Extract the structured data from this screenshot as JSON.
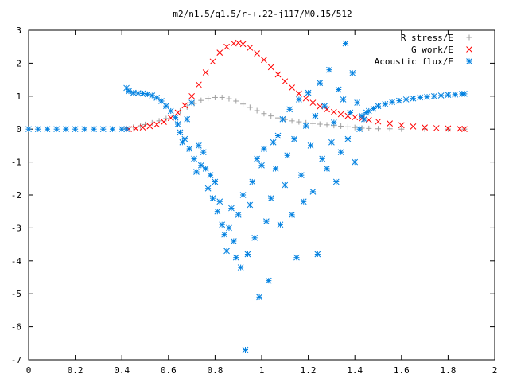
{
  "chart_data": {
    "type": "scatter",
    "title": "m2/n1.5/q1.5/r-+.22-j117/M0.15/512",
    "xlabel": "",
    "ylabel": "",
    "xlim": [
      0,
      2
    ],
    "ylim": [
      -7,
      3
    ],
    "x_ticks": [
      "0",
      "0.2",
      "0.4",
      "0.6",
      "0.8",
      "1",
      "1.2",
      "1.4",
      "1.6",
      "1.8",
      "2"
    ],
    "y_ticks": [
      "3",
      "2",
      "1",
      "0",
      "-1",
      "-2",
      "-3",
      "-4",
      "-5",
      "-6",
      "-7"
    ],
    "grid": false,
    "legend_position": "top-right",
    "series": [
      {
        "name": "R stress/E",
        "marker": "plus",
        "color": "#a0a0a0",
        "points": [
          [
            0.42,
            0.02
          ],
          [
            0.45,
            0.06
          ],
          [
            0.48,
            0.1
          ],
          [
            0.5,
            0.14
          ],
          [
            0.53,
            0.19
          ],
          [
            0.56,
            0.25
          ],
          [
            0.59,
            0.32
          ],
          [
            0.62,
            0.42
          ],
          [
            0.65,
            0.55
          ],
          [
            0.68,
            0.67
          ],
          [
            0.71,
            0.78
          ],
          [
            0.74,
            0.87
          ],
          [
            0.77,
            0.93
          ],
          [
            0.8,
            0.96
          ],
          [
            0.83,
            0.96
          ],
          [
            0.86,
            0.92
          ],
          [
            0.89,
            0.85
          ],
          [
            0.92,
            0.76
          ],
          [
            0.95,
            0.66
          ],
          [
            0.98,
            0.56
          ],
          [
            1.01,
            0.47
          ],
          [
            1.04,
            0.4
          ],
          [
            1.07,
            0.34
          ],
          [
            1.1,
            0.29
          ],
          [
            1.13,
            0.25
          ],
          [
            1.16,
            0.22
          ],
          [
            1.19,
            0.19
          ],
          [
            1.22,
            0.17
          ],
          [
            1.25,
            0.15
          ],
          [
            1.28,
            0.13
          ],
          [
            1.31,
            0.11
          ],
          [
            1.34,
            0.09
          ],
          [
            1.37,
            0.07
          ],
          [
            1.4,
            0.05
          ],
          [
            1.43,
            0.03
          ],
          [
            1.46,
            0.02
          ],
          [
            1.5,
            0.01
          ],
          [
            1.55,
            0.01
          ],
          [
            1.6,
            0.0
          ],
          [
            1.7,
            0.0
          ],
          [
            1.8,
            0.0
          ],
          [
            1.87,
            0.0
          ]
        ]
      },
      {
        "name": "G work/E",
        "marker": "cross",
        "color": "#ff0000",
        "points": [
          [
            0.43,
            0.0
          ],
          [
            0.46,
            0.02
          ],
          [
            0.49,
            0.05
          ],
          [
            0.52,
            0.09
          ],
          [
            0.55,
            0.14
          ],
          [
            0.58,
            0.22
          ],
          [
            0.61,
            0.34
          ],
          [
            0.64,
            0.5
          ],
          [
            0.67,
            0.72
          ],
          [
            0.7,
            1.0
          ],
          [
            0.73,
            1.35
          ],
          [
            0.76,
            1.72
          ],
          [
            0.79,
            2.05
          ],
          [
            0.82,
            2.32
          ],
          [
            0.85,
            2.5
          ],
          [
            0.88,
            2.6
          ],
          [
            0.9,
            2.62
          ],
          [
            0.92,
            2.58
          ],
          [
            0.95,
            2.47
          ],
          [
            0.98,
            2.3
          ],
          [
            1.01,
            2.1
          ],
          [
            1.04,
            1.88
          ],
          [
            1.07,
            1.66
          ],
          [
            1.1,
            1.45
          ],
          [
            1.13,
            1.26
          ],
          [
            1.16,
            1.08
          ],
          [
            1.19,
            0.93
          ],
          [
            1.22,
            0.8
          ],
          [
            1.25,
            0.69
          ],
          [
            1.28,
            0.6
          ],
          [
            1.31,
            0.52
          ],
          [
            1.34,
            0.45
          ],
          [
            1.37,
            0.4
          ],
          [
            1.4,
            0.36
          ],
          [
            1.43,
            0.32
          ],
          [
            1.46,
            0.28
          ],
          [
            1.5,
            0.23
          ],
          [
            1.55,
            0.17
          ],
          [
            1.6,
            0.12
          ],
          [
            1.65,
            0.08
          ],
          [
            1.7,
            0.05
          ],
          [
            1.75,
            0.03
          ],
          [
            1.8,
            0.02
          ],
          [
            1.85,
            0.01
          ],
          [
            1.87,
            0.0
          ]
        ]
      },
      {
        "name": "Acoustic flux/E",
        "marker": "star",
        "color": "#0080e0",
        "points": [
          [
            0.0,
            0.0
          ],
          [
            0.04,
            0.0
          ],
          [
            0.08,
            0.0
          ],
          [
            0.12,
            0.0
          ],
          [
            0.16,
            0.0
          ],
          [
            0.2,
            0.0
          ],
          [
            0.24,
            0.0
          ],
          [
            0.28,
            0.0
          ],
          [
            0.32,
            0.0
          ],
          [
            0.36,
            0.0
          ],
          [
            0.4,
            0.0
          ],
          [
            0.42,
            0.0
          ],
          [
            0.42,
            1.25
          ],
          [
            0.43,
            1.15
          ],
          [
            0.45,
            1.1
          ],
          [
            0.47,
            1.09
          ],
          [
            0.49,
            1.08
          ],
          [
            0.51,
            1.06
          ],
          [
            0.53,
            1.02
          ],
          [
            0.55,
            0.95
          ],
          [
            0.57,
            0.85
          ],
          [
            0.59,
            0.7
          ],
          [
            0.61,
            0.55
          ],
          [
            0.63,
            0.35
          ],
          [
            0.64,
            0.15
          ],
          [
            0.65,
            -0.1
          ],
          [
            0.66,
            -0.4
          ],
          [
            0.67,
            -0.3
          ],
          [
            0.68,
            0.3
          ],
          [
            0.69,
            -0.6
          ],
          [
            0.7,
            0.8
          ],
          [
            0.71,
            -0.9
          ],
          [
            0.72,
            -1.3
          ],
          [
            0.73,
            -0.5
          ],
          [
            0.74,
            -1.1
          ],
          [
            0.75,
            -0.7
          ],
          [
            0.76,
            -1.2
          ],
          [
            0.77,
            -1.8
          ],
          [
            0.78,
            -1.4
          ],
          [
            0.79,
            -2.1
          ],
          [
            0.8,
            -1.6
          ],
          [
            0.81,
            -2.5
          ],
          [
            0.82,
            -2.2
          ],
          [
            0.83,
            -2.9
          ],
          [
            0.84,
            -3.2
          ],
          [
            0.85,
            -3.7
          ],
          [
            0.86,
            -3.0
          ],
          [
            0.87,
            -2.4
          ],
          [
            0.88,
            -3.4
          ],
          [
            0.89,
            -3.9
          ],
          [
            0.9,
            -2.6
          ],
          [
            0.91,
            -4.2
          ],
          [
            0.92,
            -2.0
          ],
          [
            0.93,
            -6.7
          ],
          [
            0.94,
            -3.8
          ],
          [
            0.95,
            -2.3
          ],
          [
            0.96,
            -1.6
          ],
          [
            0.97,
            -3.3
          ],
          [
            0.98,
            -0.9
          ],
          [
            0.99,
            -5.1
          ],
          [
            1.0,
            -1.1
          ],
          [
            1.01,
            -0.6
          ],
          [
            1.02,
            -2.8
          ],
          [
            1.03,
            -4.6
          ],
          [
            1.04,
            -2.1
          ],
          [
            1.05,
            -0.4
          ],
          [
            1.06,
            -1.2
          ],
          [
            1.07,
            -0.2
          ],
          [
            1.08,
            -2.9
          ],
          [
            1.09,
            0.3
          ],
          [
            1.1,
            -1.7
          ],
          [
            1.11,
            -0.8
          ],
          [
            1.12,
            0.6
          ],
          [
            1.13,
            -2.6
          ],
          [
            1.14,
            -0.3
          ],
          [
            1.15,
            -3.9
          ],
          [
            1.16,
            0.9
          ],
          [
            1.17,
            -1.4
          ],
          [
            1.18,
            -2.2
          ],
          [
            1.19,
            0.1
          ],
          [
            1.2,
            1.1
          ],
          [
            1.21,
            -0.5
          ],
          [
            1.22,
            -1.9
          ],
          [
            1.23,
            0.4
          ],
          [
            1.24,
            -3.8
          ],
          [
            1.25,
            1.4
          ],
          [
            1.26,
            -0.9
          ],
          [
            1.27,
            0.7
          ],
          [
            1.28,
            -1.2
          ],
          [
            1.29,
            1.8
          ],
          [
            1.3,
            -0.4
          ],
          [
            1.31,
            0.2
          ],
          [
            1.32,
            -1.6
          ],
          [
            1.33,
            1.2
          ],
          [
            1.34,
            -0.7
          ],
          [
            1.35,
            0.9
          ],
          [
            1.36,
            2.6
          ],
          [
            1.37,
            -0.3
          ],
          [
            1.38,
            0.5
          ],
          [
            1.39,
            1.7
          ],
          [
            1.4,
            -1.0
          ],
          [
            1.41,
            0.8
          ],
          [
            1.42,
            0.0
          ],
          [
            1.43,
            0.4
          ],
          [
            1.44,
            0.3
          ],
          [
            1.45,
            0.5
          ],
          [
            1.46,
            0.55
          ],
          [
            1.48,
            0.62
          ],
          [
            1.5,
            0.7
          ],
          [
            1.53,
            0.76
          ],
          [
            1.56,
            0.82
          ],
          [
            1.59,
            0.86
          ],
          [
            1.62,
            0.9
          ],
          [
            1.65,
            0.93
          ],
          [
            1.68,
            0.96
          ],
          [
            1.71,
            0.98
          ],
          [
            1.74,
            1.0
          ],
          [
            1.77,
            1.02
          ],
          [
            1.8,
            1.04
          ],
          [
            1.83,
            1.05
          ],
          [
            1.86,
            1.07
          ],
          [
            1.87,
            1.07
          ]
        ]
      }
    ]
  }
}
